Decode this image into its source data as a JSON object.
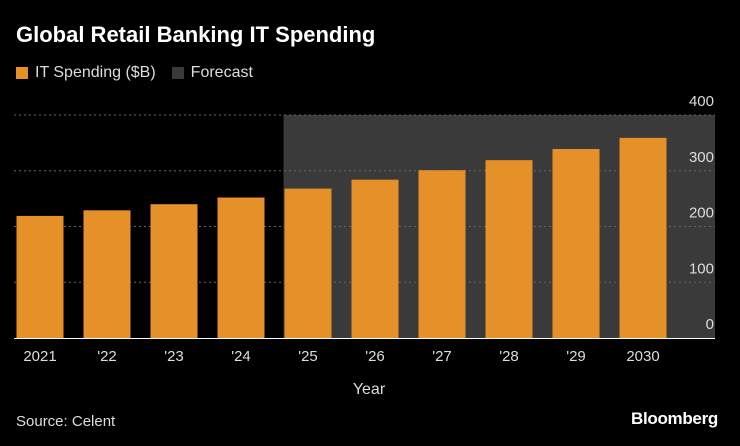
{
  "chart_data": {
    "type": "bar",
    "title": "Global Retail Banking IT Spending",
    "legend": [
      {
        "label": "IT Spending ($B)",
        "color": "#E6902A"
      },
      {
        "label": "Forecast",
        "color": "#3A3A3A"
      }
    ],
    "categories": [
      "2021",
      "'22",
      "'23",
      "'24",
      "'25",
      "'26",
      "'27",
      "'28",
      "'29",
      "2030"
    ],
    "series": [
      {
        "name": "IT Spending ($B)",
        "values": [
          219,
          229,
          240,
          252,
          268,
          284,
          301,
          319,
          339,
          359
        ]
      }
    ],
    "forecast_start_index": 4,
    "xlabel": "Year",
    "ylabel": "",
    "ylim": [
      0,
      400
    ],
    "yticks": [
      0,
      100,
      200,
      300,
      400
    ],
    "grid": true,
    "y_axis_position": "right",
    "legend_position": "top-left"
  },
  "footer": {
    "source": "Source: Celent",
    "brand": "Bloomberg"
  },
  "colors": {
    "bar": "#E6902A",
    "forecast_shade": "#3A3A3A",
    "background": "#000000",
    "grid": "#666666"
  }
}
